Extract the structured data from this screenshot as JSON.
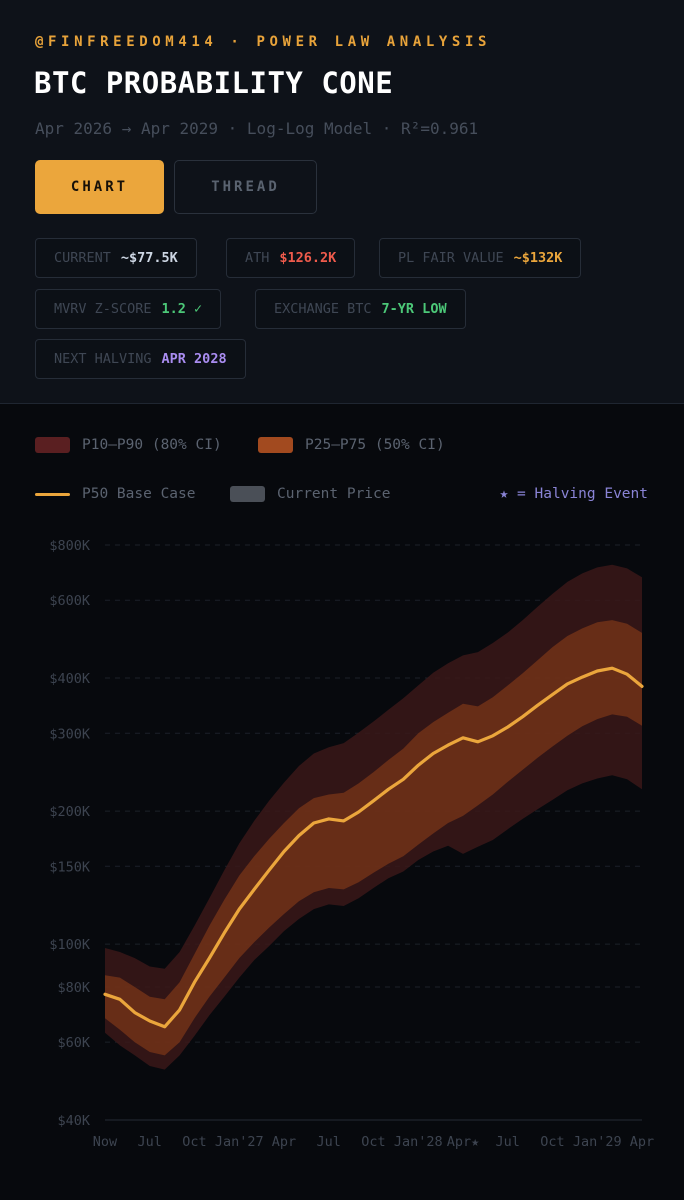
{
  "header": {
    "eyebrow": "@FINFREEDOM414 · POWER LAW ANALYSIS",
    "title": "BTC PROBABILITY CONE",
    "subtitle": "Apr 2026 → Apr 2029 · Log-Log Model · R²=0.961"
  },
  "tabs": [
    {
      "label": "CHART",
      "active": true
    },
    {
      "label": "THREAD",
      "active": false
    }
  ],
  "chips": [
    {
      "key": "CURRENT",
      "value": "~$77.5K",
      "color": "#cdd6e3"
    },
    {
      "key": "ATH",
      "value": "$126.2K",
      "color": "#ef5b4c"
    },
    {
      "key": "PL FAIR VALUE",
      "value": "~$132K",
      "color": "#eba63c"
    },
    {
      "key": "MVRV Z-SCORE",
      "value": "1.2 ✓",
      "color": "#4cc878"
    },
    {
      "key": "EXCHANGE BTC",
      "value": "7-YR LOW",
      "color": "#4cc878"
    },
    {
      "key": "NEXT HALVING",
      "value": "APR 2028",
      "color": "#a98cf0"
    }
  ],
  "legend": {
    "band80": "P10–P90 (80% CI)",
    "band50": "P25–P75 (50% CI)",
    "p50": "P50 Base Case",
    "current": "Current Price",
    "halving": "★ = Halving Event"
  },
  "colors": {
    "band80": "#5a1f21",
    "band50": "#a24a1f",
    "p50": "#eba63c",
    "current": "#4a4f57",
    "halving": "#8a84d6"
  },
  "chart_data": {
    "type": "area",
    "yscale": "log",
    "ylim": [
      40000,
      800000
    ],
    "yticks": [
      {
        "value": 40000,
        "label": "$40K"
      },
      {
        "value": 60000,
        "label": "$60K"
      },
      {
        "value": 80000,
        "label": "$80K"
      },
      {
        "value": 100000,
        "label": "$100K"
      },
      {
        "value": 150000,
        "label": "$150K"
      },
      {
        "value": 200000,
        "label": "$200K"
      },
      {
        "value": 300000,
        "label": "$300K"
      },
      {
        "value": 400000,
        "label": "$400K"
      },
      {
        "value": 600000,
        "label": "$600K"
      },
      {
        "value": 800000,
        "label": "$800K"
      }
    ],
    "xlim": [
      "2026-04",
      "2029-04"
    ],
    "xticks": [
      {
        "date": "2026-04",
        "label": "Now"
      },
      {
        "date": "2026-07",
        "label": "Jul"
      },
      {
        "date": "2026-10",
        "label": "Oct"
      },
      {
        "date": "2027-01",
        "label": "Jan'27"
      },
      {
        "date": "2027-04",
        "label": "Apr"
      },
      {
        "date": "2027-07",
        "label": "Jul"
      },
      {
        "date": "2027-10",
        "label": "Oct"
      },
      {
        "date": "2028-01",
        "label": "Jan'28"
      },
      {
        "date": "2028-04",
        "label": "Apr★"
      },
      {
        "date": "2028-07",
        "label": "Jul"
      },
      {
        "date": "2028-10",
        "label": "Oct"
      },
      {
        "date": "2029-01",
        "label": "Jan'29"
      },
      {
        "date": "2029-04",
        "label": "Apr"
      }
    ],
    "x": [
      "2026-04",
      "2026-05",
      "2026-06",
      "2026-07",
      "2026-08",
      "2026-09",
      "2026-10",
      "2026-11",
      "2026-12",
      "2027-01",
      "2027-02",
      "2027-03",
      "2027-04",
      "2027-05",
      "2027-06",
      "2027-07",
      "2027-08",
      "2027-09",
      "2027-10",
      "2027-11",
      "2027-12",
      "2028-01",
      "2028-02",
      "2028-03",
      "2028-04",
      "2028-05",
      "2028-06",
      "2028-07",
      "2028-08",
      "2028-09",
      "2028-10",
      "2028-11",
      "2028-12",
      "2029-01",
      "2029-02",
      "2029-03",
      "2029-04"
    ],
    "series": [
      {
        "name": "P10",
        "values": [
          63000,
          59000,
          56000,
          53000,
          52000,
          56000,
          62000,
          69000,
          76000,
          84000,
          92000,
          99000,
          107000,
          114000,
          120000,
          123000,
          122000,
          127000,
          134000,
          141000,
          146000,
          155000,
          162000,
          167000,
          160000,
          166000,
          172000,
          182000,
          192000,
          202000,
          212000,
          223000,
          231000,
          237000,
          241000,
          236000,
          224000
        ]
      },
      {
        "name": "P25",
        "values": [
          68000,
          64000,
          60000,
          57000,
          56000,
          60000,
          68000,
          76000,
          84000,
          93000,
          101000,
          109000,
          117000,
          125000,
          131000,
          134000,
          133000,
          138000,
          145000,
          152000,
          158000,
          168000,
          178000,
          188000,
          195000,
          206000,
          218000,
          233000,
          248000,
          264000,
          280000,
          296000,
          311000,
          323000,
          331000,
          327000,
          312000
        ]
      },
      {
        "name": "P50",
        "values": [
          77000,
          75000,
          70000,
          67000,
          65000,
          71000,
          82000,
          93000,
          106000,
          120000,
          133000,
          147000,
          162000,
          176000,
          188000,
          192000,
          190000,
          199000,
          211000,
          224000,
          236000,
          254000,
          270000,
          282000,
          293000,
          287000,
          296000,
          310000,
          327000,
          347000,
          367000,
          388000,
          402000,
          415000,
          421000,
          408000,
          383000
        ]
      },
      {
        "name": "P75",
        "values": [
          85000,
          84000,
          80000,
          76000,
          75000,
          82000,
          95000,
          110000,
          126000,
          143000,
          158000,
          173000,
          188000,
          203000,
          214000,
          218000,
          220000,
          231000,
          245000,
          261000,
          277000,
          300000,
          318000,
          334000,
          350000,
          345000,
          362000,
          385000,
          410000,
          439000,
          470000,
          498000,
          518000,
          535000,
          541000,
          531000,
          506000
        ]
      },
      {
        "name": "P90",
        "values": [
          98000,
          96000,
          93000,
          89000,
          88000,
          96000,
          110000,
          127000,
          147000,
          169000,
          190000,
          211000,
          232000,
          253000,
          270000,
          279000,
          285000,
          301000,
          319000,
          339000,
          360000,
          385000,
          411000,
          432000,
          450000,
          458000,
          480000,
          507000,
          541000,
          580000,
          620000,
          660000,
          690000,
          712000,
          722000,
          708000,
          676000
        ]
      }
    ]
  }
}
